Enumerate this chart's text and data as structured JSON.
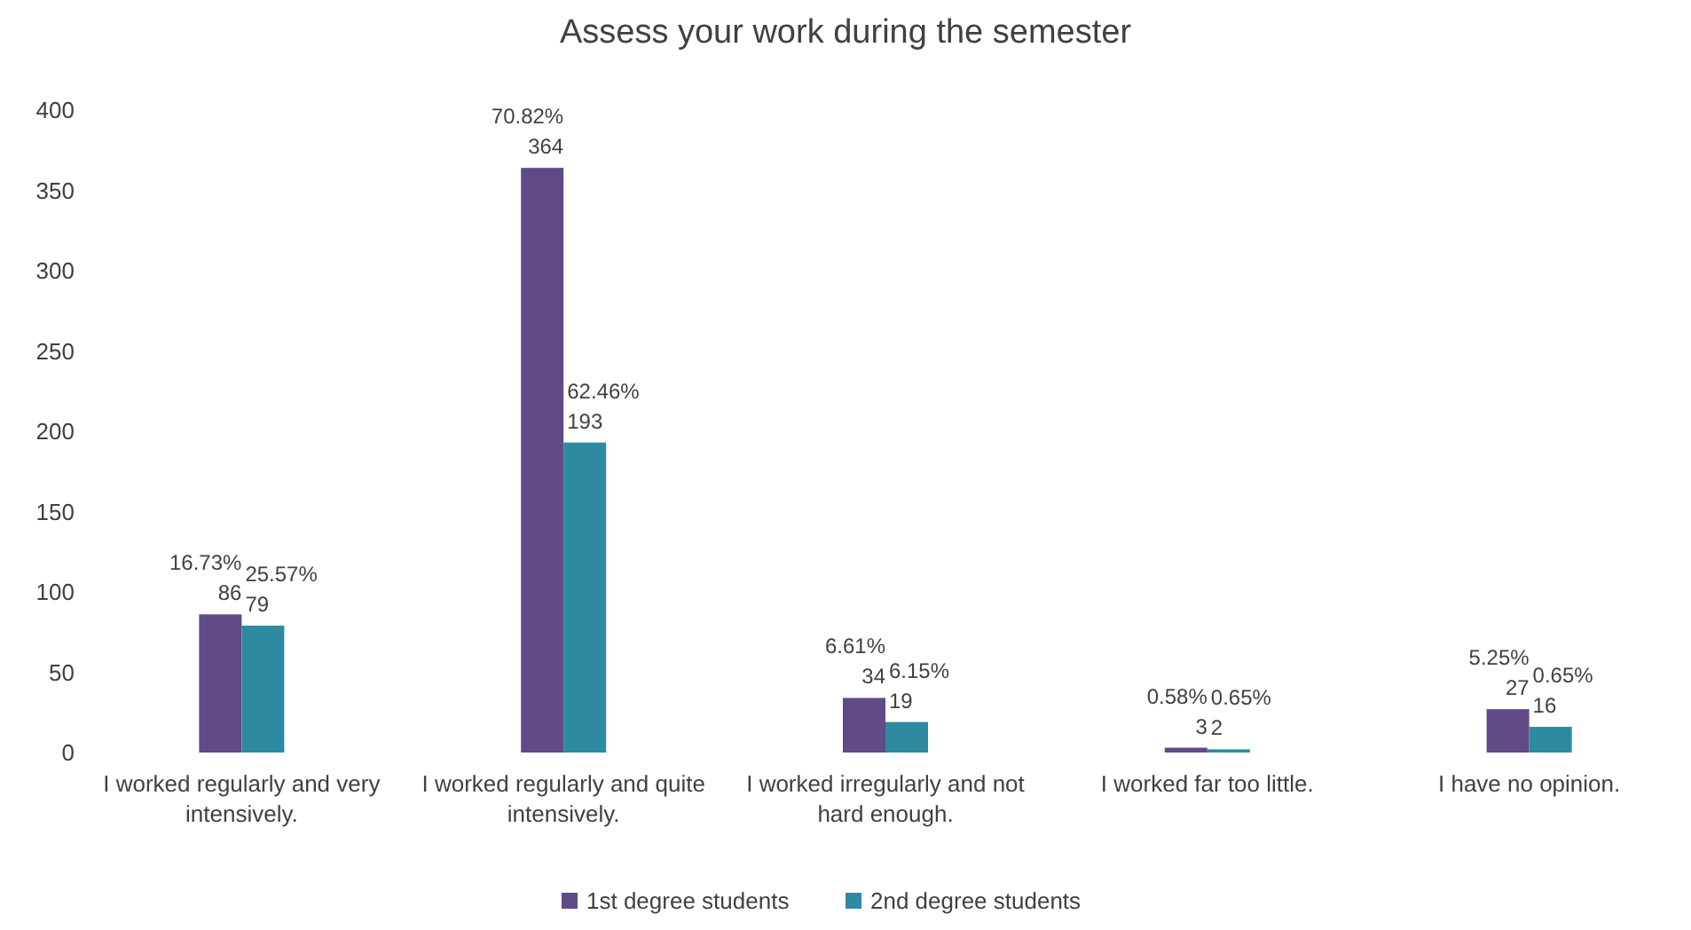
{
  "chart_data": {
    "type": "bar",
    "title": "Assess your work during the semester",
    "categories": [
      "I worked regularly and very intensively.",
      "I worked regularly and quite intensively.",
      "I worked irregularly and not hard enough.",
      "I worked far too little.",
      "I have no opinion."
    ],
    "series": [
      {
        "name": "1st degree students",
        "color": "#604a87",
        "values": [
          86,
          364,
          34,
          3,
          27
        ],
        "value_labels": [
          "16.73%\n86",
          "70.82%\n364",
          "6.61%\n34",
          "0.58%\n3",
          "5.25%\n27"
        ]
      },
      {
        "name": "2nd degree students",
        "color": "#2e8aa0",
        "values": [
          79,
          193,
          19,
          2,
          16
        ],
        "value_labels": [
          "25.57%\n79",
          "62.46%\n193",
          "6.15%\n19",
          "0.65%\n2",
          "0.65%\n16"
        ]
      }
    ],
    "ylim": [
      0,
      400
    ],
    "yticks": [
      0,
      50,
      100,
      150,
      200,
      250,
      300,
      350,
      400
    ],
    "grid": false,
    "legend": "bottom"
  }
}
